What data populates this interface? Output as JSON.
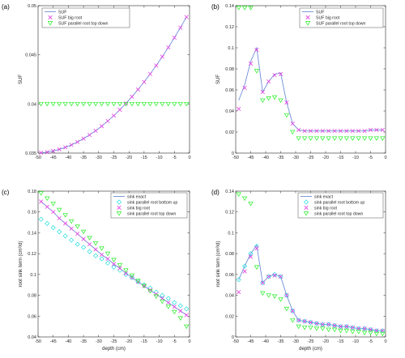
{
  "figure": {
    "panels": [
      {
        "label": "(a)"
      },
      {
        "label": "(b)"
      },
      {
        "label": "(c)"
      },
      {
        "label": "(d)"
      }
    ]
  },
  "colors": {
    "exact": "#6f8fd8",
    "big_root": "#e040e0",
    "top_down": "#22ee22",
    "bottom_up": "#22dddd"
  },
  "chart_data": [
    {
      "type": "line",
      "panel": "(a)",
      "xlabel": "",
      "ylabel": "SUF",
      "xlim": [
        -50,
        0
      ],
      "ylim": [
        0.035,
        0.05
      ],
      "xticks": [
        -50,
        -45,
        -40,
        -35,
        -30,
        -25,
        -20,
        -15,
        -10,
        -5,
        0
      ],
      "yticks": [
        0.035,
        0.04,
        0.045,
        0.05
      ],
      "ytick_labels": [
        "0.035",
        "0.04",
        "0.045",
        "0.05"
      ],
      "legend_position": "top-left",
      "x": [
        -49,
        -47,
        -45,
        -43,
        -41,
        -39,
        -37,
        -35,
        -33,
        -31,
        -29,
        -27,
        -25,
        -23,
        -21,
        -19,
        -17,
        -15,
        -13,
        -11,
        -9,
        -7,
        -5,
        -3,
        -1
      ],
      "series": [
        {
          "name": "SUF",
          "style": "line",
          "color": "#6f8fd8",
          "values": [
            0.03503,
            0.0351,
            0.03522,
            0.03538,
            0.03558,
            0.03583,
            0.03613,
            0.03647,
            0.03685,
            0.03727,
            0.03774,
            0.03826,
            0.03881,
            0.03941,
            0.04005,
            0.04074,
            0.04147,
            0.04224,
            0.04305,
            0.04391,
            0.04481,
            0.04575,
            0.04674,
            0.04777,
            0.04884
          ]
        },
        {
          "name": "SUF big root",
          "style": "x",
          "color": "#e040e0",
          "values": [
            0.03503,
            0.0351,
            0.03522,
            0.03538,
            0.03558,
            0.03583,
            0.03613,
            0.03647,
            0.03685,
            0.03727,
            0.03774,
            0.03826,
            0.03881,
            0.03941,
            0.04005,
            0.04074,
            0.04147,
            0.04224,
            0.04305,
            0.04391,
            0.04481,
            0.04575,
            0.04674,
            0.04777,
            0.04884
          ]
        },
        {
          "name": "SUF parallel root top down",
          "style": "triangle",
          "color": "#22ee22",
          "values": [
            0.04,
            0.04,
            0.04,
            0.04,
            0.04,
            0.04,
            0.04,
            0.04,
            0.04,
            0.04,
            0.04,
            0.04,
            0.04,
            0.04,
            0.04,
            0.04,
            0.04,
            0.04,
            0.04,
            0.04,
            0.04,
            0.04,
            0.04,
            0.04,
            0.04
          ]
        }
      ]
    },
    {
      "type": "line",
      "panel": "(b)",
      "xlabel": "",
      "ylabel": "SUF",
      "xlim": [
        -50,
        0
      ],
      "ylim": [
        0,
        0.14
      ],
      "xticks": [
        -50,
        -45,
        -40,
        -35,
        -30,
        -25,
        -20,
        -15,
        -10,
        -5,
        0
      ],
      "yticks": [
        0,
        0.02,
        0.04,
        0.06,
        0.08,
        0.1,
        0.12,
        0.14
      ],
      "ytick_labels": [
        "0",
        "0.02",
        "0.04",
        "0.06",
        "0.08",
        "0.1",
        "0.12",
        "0.14"
      ],
      "legend_position": "top-right",
      "x": [
        -49,
        -47,
        -45,
        -43,
        -41,
        -39,
        -37,
        -35,
        -33,
        -31,
        -29,
        -27,
        -25,
        -23,
        -21,
        -19,
        -17,
        -15,
        -13,
        -11,
        -9,
        -7,
        -5,
        -3,
        -1
      ],
      "series": [
        {
          "name": "SUF",
          "style": "line",
          "color": "#6f8fd8",
          "values": [
            0.05,
            0.065,
            0.087,
            0.1,
            0.058,
            0.068,
            0.075,
            0.076,
            0.048,
            0.028,
            0.022,
            0.021,
            0.021,
            0.021,
            0.021,
            0.021,
            0.021,
            0.021,
            0.021,
            0.021,
            0.021,
            0.021,
            0.022,
            0.022,
            0.022
          ]
        },
        {
          "name": "SUF big root",
          "style": "x",
          "color": "#e040e0",
          "values": [
            0.042,
            0.062,
            0.085,
            0.098,
            0.058,
            0.068,
            0.074,
            0.075,
            0.048,
            0.028,
            0.022,
            0.021,
            0.021,
            0.021,
            0.021,
            0.021,
            0.021,
            0.021,
            0.021,
            0.021,
            0.021,
            0.021,
            0.022,
            0.022,
            0.022
          ]
        },
        {
          "name": "SUF parallel root top down",
          "style": "triangle",
          "color": "#22ee22",
          "values": [
            0.138,
            0.138,
            0.138,
            0.078,
            0.05,
            0.052,
            0.053,
            0.05,
            0.036,
            0.02,
            0.014,
            0.014,
            0.014,
            0.014,
            0.014,
            0.014,
            0.014,
            0.014,
            0.014,
            0.014,
            0.014,
            0.014,
            0.014,
            0.014,
            0.014
          ]
        }
      ]
    },
    {
      "type": "line",
      "panel": "(c)",
      "xlabel": "depth (cm)",
      "ylabel": "root sink term (cm³/d)",
      "xlim": [
        -50,
        0
      ],
      "ylim": [
        0.04,
        0.18
      ],
      "xticks": [
        -50,
        -45,
        -40,
        -35,
        -30,
        -25,
        -20,
        -15,
        -10,
        -5,
        0
      ],
      "yticks": [
        0.04,
        0.06,
        0.08,
        0.1,
        0.12,
        0.14,
        0.16,
        0.18
      ],
      "ytick_labels": [
        "0.04",
        "0.06",
        "0.08",
        "0.1",
        "0.12",
        "0.14",
        "0.16",
        "0.18"
      ],
      "legend_position": "top-right",
      "x": [
        -49,
        -47,
        -45,
        -43,
        -41,
        -39,
        -37,
        -35,
        -33,
        -31,
        -29,
        -27,
        -25,
        -23,
        -21,
        -19,
        -17,
        -15,
        -13,
        -11,
        -9,
        -7,
        -5,
        -3,
        -1
      ],
      "series": [
        {
          "name": "sink exact",
          "style": "line",
          "color": "#6f8fd8",
          "values": [
            0.17,
            0.165,
            0.16,
            0.154,
            0.149,
            0.144,
            0.139,
            0.134,
            0.129,
            0.124,
            0.119,
            0.115,
            0.11,
            0.106,
            0.101,
            0.097,
            0.093,
            0.089,
            0.085,
            0.081,
            0.077,
            0.073,
            0.069,
            0.065,
            0.061
          ]
        },
        {
          "name": "sink parallel root bottom up",
          "style": "diamond",
          "color": "#22dddd",
          "values": [
            0.153,
            0.149,
            0.145,
            0.141,
            0.137,
            0.133,
            0.129,
            0.126,
            0.122,
            0.118,
            0.115,
            0.111,
            0.107,
            0.104,
            0.1,
            0.097,
            0.093,
            0.09,
            0.087,
            0.083,
            0.08,
            0.077,
            0.073,
            0.07,
            0.067
          ]
        },
        {
          "name": "sink big root",
          "style": "x",
          "color": "#e040e0",
          "values": [
            0.17,
            0.165,
            0.16,
            0.154,
            0.149,
            0.144,
            0.139,
            0.134,
            0.129,
            0.124,
            0.119,
            0.115,
            0.11,
            0.106,
            0.101,
            0.097,
            0.093,
            0.089,
            0.085,
            0.081,
            0.077,
            0.073,
            0.069,
            0.065,
            0.061
          ]
        },
        {
          "name": "sink parallel root top down",
          "style": "triangle",
          "color": "#22ee22",
          "values": [
            0.178,
            0.173,
            0.168,
            0.162,
            0.157,
            0.151,
            0.146,
            0.141,
            0.135,
            0.13,
            0.125,
            0.12,
            0.114,
            0.109,
            0.104,
            0.099,
            0.094,
            0.089,
            0.084,
            0.079,
            0.074,
            0.069,
            0.064,
            0.058,
            0.05
          ]
        }
      ]
    },
    {
      "type": "line",
      "panel": "(d)",
      "xlabel": "depth (cm)",
      "ylabel": "root sink term (cm³/d)",
      "xlim": [
        -50,
        0
      ],
      "ylim": [
        0,
        0.14
      ],
      "xticks": [
        -50,
        -45,
        -40,
        -35,
        -30,
        -25,
        -20,
        -15,
        -10,
        -5,
        0
      ],
      "yticks": [
        0,
        0.02,
        0.04,
        0.06,
        0.08,
        0.1,
        0.12,
        0.14
      ],
      "ytick_labels": [
        "0",
        "0.02",
        "0.04",
        "0.06",
        "0.08",
        "0.1",
        "0.12",
        "0.14"
      ],
      "legend_position": "top-right",
      "x": [
        -49,
        -47,
        -45,
        -43,
        -41,
        -39,
        -37,
        -35,
        -33,
        -31,
        -29,
        -27,
        -25,
        -23,
        -21,
        -19,
        -17,
        -15,
        -13,
        -11,
        -9,
        -7,
        -5,
        -3,
        -1
      ],
      "series": [
        {
          "name": "sink exact",
          "style": "line",
          "color": "#6f8fd8",
          "values": [
            0.055,
            0.068,
            0.08,
            0.088,
            0.052,
            0.058,
            0.06,
            0.058,
            0.04,
            0.025,
            0.016,
            0.015,
            0.014,
            0.013,
            0.012,
            0.012,
            0.011,
            0.01,
            0.01,
            0.009,
            0.008,
            0.008,
            0.007,
            0.006,
            0.006
          ]
        },
        {
          "name": "sink parallel root bottom up",
          "style": "diamond",
          "color": "#22dddd",
          "values": [
            0.055,
            0.068,
            0.08,
            0.087,
            0.052,
            0.058,
            0.06,
            0.058,
            0.04,
            0.025,
            0.016,
            0.015,
            0.014,
            0.013,
            0.012,
            0.012,
            0.011,
            0.01,
            0.01,
            0.009,
            0.008,
            0.008,
            0.007,
            0.006,
            0.006
          ]
        },
        {
          "name": "sink big root",
          "style": "x",
          "color": "#e040e0",
          "values": [
            0.043,
            0.063,
            0.077,
            0.085,
            0.052,
            0.058,
            0.059,
            0.058,
            0.04,
            0.025,
            0.016,
            0.015,
            0.014,
            0.013,
            0.012,
            0.012,
            0.011,
            0.01,
            0.01,
            0.009,
            0.008,
            0.008,
            0.007,
            0.006,
            0.006
          ]
        },
        {
          "name": "sink parallel root top down",
          "style": "triangle",
          "color": "#22ee22",
          "values": [
            0.137,
            0.133,
            0.128,
            0.067,
            0.042,
            0.04,
            0.039,
            0.036,
            0.027,
            0.016,
            0.01,
            0.009,
            0.009,
            0.008,
            0.008,
            0.007,
            0.007,
            0.006,
            0.006,
            0.005,
            0.005,
            0.004,
            0.004,
            0.003,
            0.003
          ]
        }
      ]
    }
  ]
}
